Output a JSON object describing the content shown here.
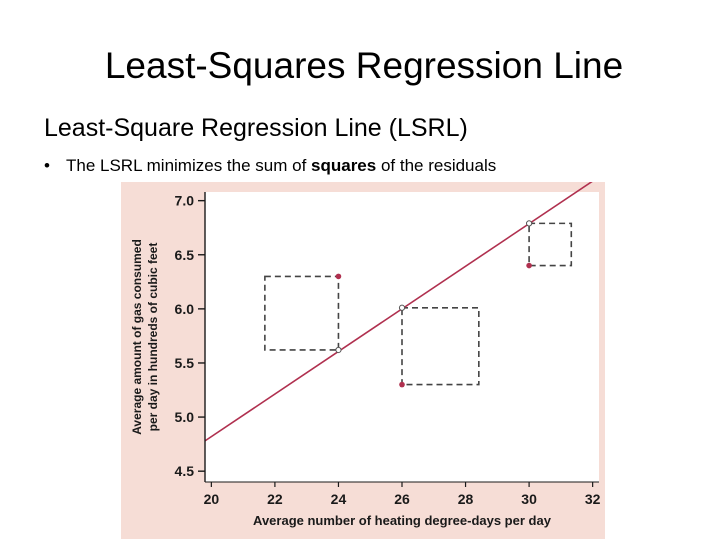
{
  "slide": {
    "title": "Least-Squares Regression Line",
    "subtitle": "Least-Square Regression Line (LSRL)",
    "bullet": {
      "before": "The LSRL minimizes the sum of ",
      "emphasis": "squares",
      "after": " of the residuals"
    }
  },
  "colors": {
    "panel_background": "#f6ddd6",
    "plot_background": "#ffffff",
    "regression_line": "#b0304f",
    "points": "#b0304f",
    "squares": "#444444"
  },
  "chart_data": {
    "type": "scatter",
    "xlabel": "Average number of heating degree-days per day",
    "ylabel_lines": [
      "Average amount of gas consumed",
      "per day in hundreds of cubic feet"
    ],
    "xlim": [
      19.8,
      32.2
    ],
    "ylim": [
      4.4,
      7.08
    ],
    "xticks": [
      20,
      22,
      24,
      26,
      28,
      30,
      32
    ],
    "yticks": [
      4.5,
      5.0,
      5.5,
      6.0,
      6.5,
      7.0
    ],
    "ytick_labels": [
      "4.5",
      "5.0",
      "5.5",
      "6.0",
      "6.5",
      "7.0"
    ],
    "regression_line": {
      "x": [
        19.8,
        32.2
      ],
      "y": [
        4.78,
        7.22
      ]
    },
    "points": [
      {
        "x": 24,
        "y": 6.3,
        "predicted": 5.62
      },
      {
        "x": 26,
        "y": 5.3,
        "predicted": 6.01
      },
      {
        "x": 30,
        "y": 6.4,
        "predicted": 6.79
      }
    ]
  }
}
